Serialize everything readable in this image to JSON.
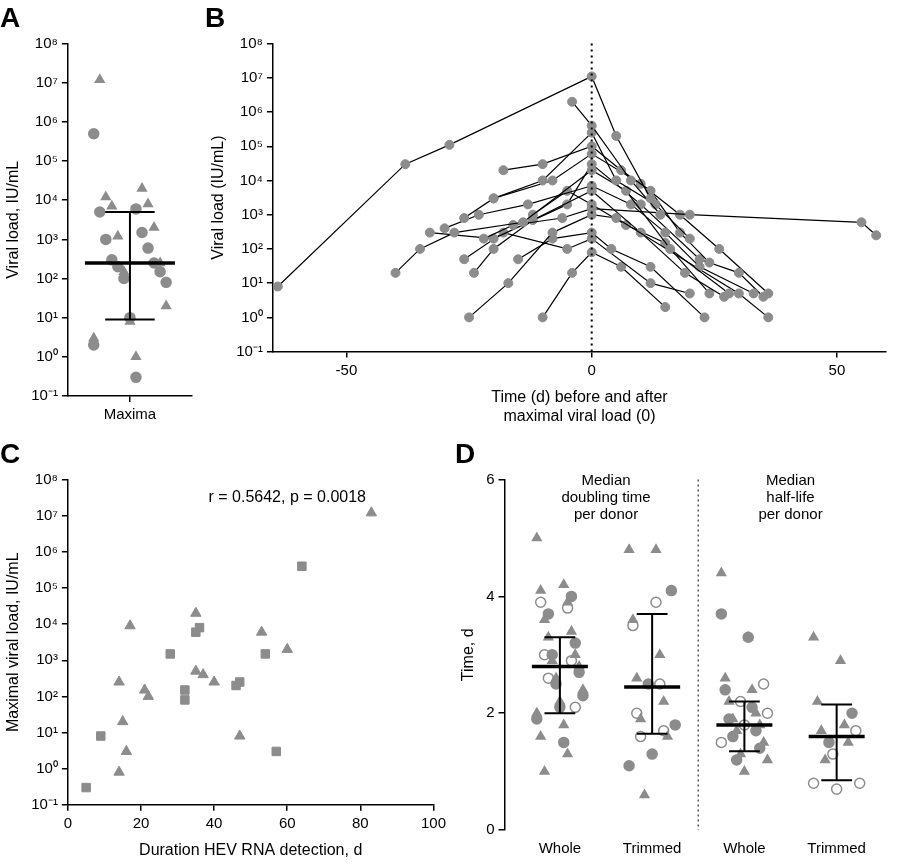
{
  "chart_data": [
    {
      "type": "scatter",
      "title": "A",
      "y_label": "Viral load, IU/mL",
      "categories": [
        "Maxima"
      ],
      "color": "#8c8c8c",
      "log": "y",
      "grid": false,
      "ylim": [
        0.1,
        100000000
      ],
      "yticks": [
        {
          "value": 0.1,
          "label": "10⁻¹"
        },
        {
          "value": 1,
          "label": "10⁰"
        },
        {
          "value": 10,
          "label": "10¹"
        },
        {
          "value": 100,
          "label": "10²"
        },
        {
          "value": 1000,
          "label": "10³"
        },
        {
          "value": 10000,
          "label": "10⁴"
        },
        {
          "value": 100000,
          "label": "10⁵"
        },
        {
          "value": 1000000,
          "label": "10⁶"
        },
        {
          "value": 10000000,
          "label": "10⁷"
        },
        {
          "value": 100000000,
          "label": "10⁸"
        }
      ],
      "series": [
        {
          "marker": "circle",
          "values": [
            [
              500000,
              6000,
              5000,
              1500,
              1000,
              600,
              300,
              250,
              200,
              150,
              100,
              80,
              10,
              2,
              0.3
            ]
          ]
        },
        {
          "marker": "triangle",
          "values": [
            [
              12000000,
              20000,
              12000,
              8000,
              7000,
              2000,
              1200,
              250,
              150,
              20,
              8,
              3,
              1
            ]
          ]
        }
      ],
      "medians": [
        250
      ],
      "q1": [
        9
      ],
      "q3": [
        5000
      ]
    },
    {
      "type": "line",
      "title": "B",
      "y_label": "Viral load (IU/mL)",
      "x_label": [
        "Time (d) before and after",
        "maximal viral load (0)"
      ],
      "color": "#8c8c8c",
      "log": "y",
      "grid": false,
      "marker": "circle",
      "xlim": [
        -65,
        60
      ],
      "xticks": [
        -50,
        0,
        50
      ],
      "ylim": [
        0.1,
        100000000
      ],
      "yticks": [
        {
          "value": 0.1,
          "label": "10⁻¹"
        },
        {
          "value": 1,
          "label": "10⁰"
        },
        {
          "value": 10,
          "label": "10¹"
        },
        {
          "value": 100,
          "label": "10²"
        },
        {
          "value": 1000,
          "label": "10³"
        },
        {
          "value": 10000,
          "label": "10⁴"
        },
        {
          "value": 100000,
          "label": "10⁵"
        },
        {
          "value": 1000000,
          "label": "10⁶"
        },
        {
          "value": 10000000,
          "label": "10⁷"
        },
        {
          "value": 100000000,
          "label": "10⁸"
        }
      ],
      "reference_line_x": 0,
      "series": [
        {
          "x": [
            -64,
            -38,
            -29,
            0,
            5,
            12
          ],
          "values": [
            8,
            30000,
            110000,
            11000000,
            200000,
            3000
          ]
        },
        {
          "x": [
            -4,
            0,
            8,
            14
          ],
          "values": [
            2000000,
            400000,
            10000,
            1000
          ]
        },
        {
          "x": [
            -26,
            -20,
            -10,
            0,
            5,
            13,
            20
          ],
          "values": [
            800,
            3000,
            10000,
            250000,
            10000,
            2000,
            200
          ]
        },
        {
          "x": [
            -40,
            -35,
            -28,
            -14,
            0,
            7,
            16,
            28
          ],
          "values": [
            20,
            100,
            300,
            600,
            20000,
            5000,
            100,
            5
          ]
        },
        {
          "x": [
            -30,
            -23,
            -13,
            0,
            8,
            15,
            22,
            33
          ],
          "values": [
            400,
            1000,
            2000,
            7000,
            2000,
            300,
            30,
            5
          ]
        },
        {
          "x": [
            -25,
            -17,
            -8,
            0,
            5,
            30,
            36
          ],
          "values": [
            1,
            10,
            300,
            1000,
            800,
            5,
            1
          ]
        },
        {
          "x": [
            -22,
            -16,
            -6,
            0,
            20,
            55,
            58
          ],
          "values": [
            200,
            500,
            800,
            1500,
            1000,
            600,
            250
          ]
        },
        {
          "x": [
            -18,
            -10,
            0,
            6,
            12,
            18,
            24
          ],
          "values": [
            20000,
            30000,
            100000,
            20000,
            5000,
            300,
            40
          ]
        },
        {
          "x": [
            -24,
            -20,
            -12,
            0,
            10,
            19,
            27
          ],
          "values": [
            20,
            100,
            700,
            5000,
            300,
            20,
            4
          ]
        },
        {
          "x": [
            -15,
            -8,
            0,
            4,
            12,
            23
          ],
          "values": [
            50,
            200,
            300,
            100,
            30,
            1
          ]
        },
        {
          "x": [
            -33,
            -20,
            -5,
            0,
            10,
            22,
            30,
            35
          ],
          "values": [
            300,
            200,
            2000,
            30000,
            2000,
            50,
            20,
            4
          ]
        },
        {
          "x": [
            -12,
            -5,
            0,
            7,
            15,
            24
          ],
          "values": [
            1000,
            5000,
            2000,
            500,
            150,
            5
          ]
        },
        {
          "x": [
            -26,
            -18,
            -5,
            0,
            12,
            20
          ],
          "values": [
            50,
            300,
            100,
            200,
            10,
            5
          ]
        },
        {
          "x": [
            -10,
            -4,
            0,
            6,
            15
          ],
          "values": [
            1,
            20,
            80,
            30,
            2
          ]
        },
        {
          "x": [
            -20,
            -8,
            0,
            10,
            18,
            26,
            36
          ],
          "values": [
            3000,
            10000,
            60000,
            8000,
            1000,
            100,
            5
          ]
        }
      ]
    },
    {
      "type": "scatter",
      "title": "C",
      "y_label": "Maximal viral load, IU/mL",
      "x_label": "Duration HEV RNA detection, d",
      "annotation": "r = 0.5642, p = 0.0018",
      "color": "#8c8c8c",
      "log": "y",
      "grid": false,
      "xlim": [
        0,
        100
      ],
      "xticks": [
        0,
        20,
        40,
        60,
        80,
        100
      ],
      "ylim": [
        0.1,
        100000000
      ],
      "yticks": [
        {
          "value": 0.1,
          "label": "10⁻¹"
        },
        {
          "value": 1,
          "label": "10⁰"
        },
        {
          "value": 10,
          "label": "10¹"
        },
        {
          "value": 100,
          "label": "10²"
        },
        {
          "value": 1000,
          "label": "10³"
        },
        {
          "value": 10000,
          "label": "10⁴"
        },
        {
          "value": 100000,
          "label": "10⁵"
        },
        {
          "value": 1000000,
          "label": "10⁶"
        },
        {
          "value": 10000000,
          "label": "10⁷"
        },
        {
          "value": 100000000,
          "label": "10⁸"
        }
      ],
      "series": [
        {
          "marker": "square",
          "x": [
            5,
            9,
            28,
            32,
            32,
            35,
            36,
            46,
            47,
            54,
            57,
            64
          ],
          "values": [
            0.3,
            8,
            1500,
            150,
            80,
            6000,
            8000,
            200,
            250,
            1500,
            3,
            400000
          ]
        },
        {
          "marker": "triangle",
          "x": [
            14,
            14,
            15,
            16,
            17,
            21,
            22,
            35,
            35,
            37,
            40,
            47,
            53,
            60,
            83
          ],
          "values": [
            250,
            0.8,
            20,
            3,
            9000,
            150,
            100,
            20000,
            500,
            400,
            250,
            8,
            6000,
            2000,
            12000000
          ]
        }
      ]
    },
    {
      "type": "scatter",
      "title": "D",
      "y_label": "Time, d",
      "categories": [
        "Whole",
        "Trimmed",
        "Whole",
        "Trimmed"
      ],
      "group_titles": [
        [
          "Median",
          "doubling time",
          "per donor"
        ],
        [
          "Median",
          "half-life",
          "per donor"
        ]
      ],
      "color": "#8c8c8c",
      "grid": false,
      "ylim": [
        0,
        6
      ],
      "yticks": [
        0,
        2,
        4,
        6
      ],
      "series": [
        {
          "marker": "triangle",
          "values": [
            [
              5.0,
              4.2,
              4.1,
              3.9,
              3.6,
              3.4,
              3.3,
              3.0,
              2.9,
              2.8,
              2.6,
              2.4,
              2.2,
              2.0,
              1.8,
              1.6,
              1.3,
              1.0
            ],
            [
              4.8,
              4.8,
              3.6,
              3.0,
              2.6,
              2.2,
              1.9,
              1.6,
              0.6
            ],
            [
              4.4,
              3.3,
              2.6,
              2.4,
              2.2,
              2.0,
              1.9,
              1.8,
              1.7,
              1.5,
              1.3,
              1.2,
              1.0
            ],
            [
              3.3,
              2.9,
              2.2,
              1.8,
              1.7,
              1.5,
              1.2
            ]
          ]
        },
        {
          "marker": "circle",
          "values": [
            [
              4.0,
              3.7,
              3.2,
              3.0,
              2.7,
              2.5,
              2.3,
              2.1,
              1.9,
              1.5
            ],
            [
              4.1,
              2.5,
              1.8,
              1.3,
              1.1
            ],
            [
              3.7,
              3.3,
              2.4,
              2.1,
              1.9,
              1.7,
              1.6,
              1.4,
              1.2
            ],
            [
              2.0,
              1.5
            ]
          ]
        },
        {
          "marker": "open_circle",
          "values": [
            [
              3.9,
              3.8,
              3.0,
              2.9,
              2.6,
              2.1
            ],
            [
              3.9,
              3.5,
              2.5,
              2.0,
              1.7,
              1.6
            ],
            [
              2.5,
              2.2,
              2.0,
              1.8,
              1.5
            ],
            [
              1.7,
              1.3,
              0.8,
              0.7,
              0.8
            ]
          ]
        }
      ],
      "medians": [
        2.8,
        2.45,
        1.8,
        1.6
      ],
      "q1": [
        2.0,
        1.65,
        1.35,
        0.85
      ],
      "q3": [
        3.3,
        3.7,
        2.2,
        2.15
      ]
    }
  ]
}
